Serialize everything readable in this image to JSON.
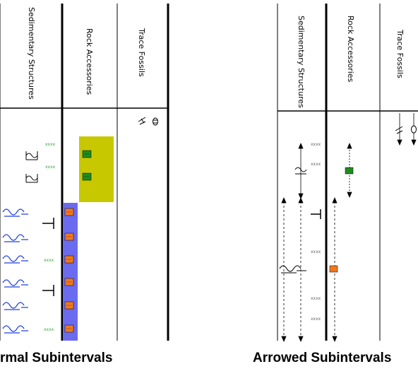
{
  "columns": {
    "sedimentary": "Sedimentary Structures",
    "rock": "Rock Accessories",
    "trace": "Trace Fossils"
  },
  "panels": {
    "normal": {
      "caption": "rmal Subintervals"
    },
    "arrowed": {
      "caption": "Arrowed Subintervals"
    }
  },
  "symbol_text": {
    "cross_pattern": "xxxx"
  },
  "colors": {
    "olive_box": "#c8c800",
    "blue_bar": "#6b6bf0",
    "orange_mark": "#f07820",
    "green_mark": "#1e8c1e",
    "ripple_blue": "#2040e0"
  }
}
